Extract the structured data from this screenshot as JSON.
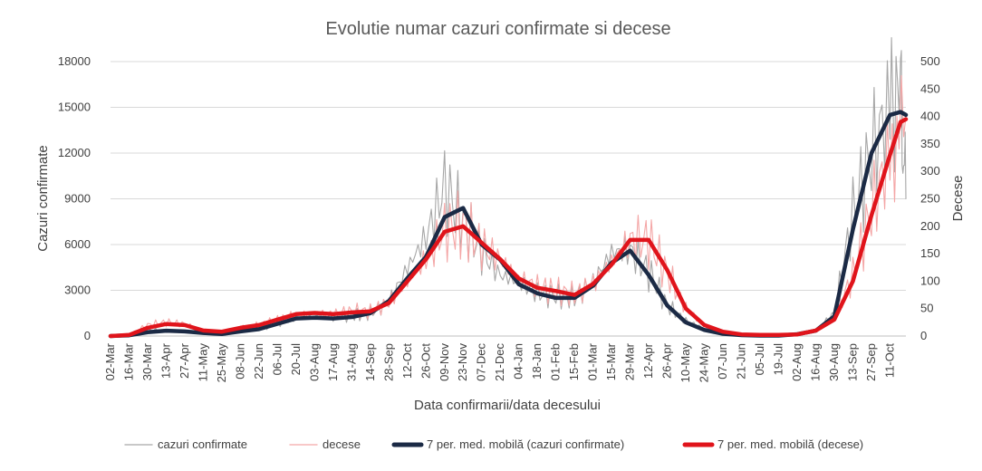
{
  "chart_data": {
    "type": "line",
    "title": "Evolutie numar cazuri confirmate si decese",
    "xlabel": "Data confirmarii/data decesului",
    "ylabel_left": "Cazuri confirmate",
    "ylabel_right": "Decese",
    "ylim_left": [
      0,
      18000
    ],
    "ylim_right": [
      0,
      500
    ],
    "yticks_left": [
      "0",
      "3000",
      "6000",
      "9000",
      "12000",
      "15000",
      "18000"
    ],
    "yticks_right": [
      "0",
      "50",
      "100",
      "150",
      "200",
      "250",
      "300",
      "350",
      "400",
      "450",
      "500"
    ],
    "x_tick_labels": [
      "02-Mar",
      "16-Mar",
      "30-Mar",
      "13-Apr",
      "27-Apr",
      "11-May",
      "25-May",
      "08-Jun",
      "22-Jun",
      "06-Jul",
      "20-Jul",
      "03-Aug",
      "17-Aug",
      "31-Aug",
      "14-Sep",
      "28-Sep",
      "12-Oct",
      "26-Oct",
      "09-Nov",
      "23-Nov",
      "07-Dec",
      "21-Dec",
      "04-Jan",
      "18-Jan",
      "01-Feb",
      "15-Feb",
      "01-Mar",
      "15-Mar",
      "29-Mar",
      "12-Apr",
      "26-Apr",
      "10-May",
      "24-May",
      "07-Jun",
      "21-Jun",
      "05-Jul",
      "19-Jul",
      "02-Aug",
      "16-Aug",
      "30-Aug",
      "13-Sep",
      "27-Sep",
      "11-Oct"
    ],
    "grid": true,
    "legend_position": "bottom",
    "series": [
      {
        "name": "cazuri confirmate",
        "axis": "left",
        "color": "#a6a6a6",
        "style": "thin-noisy",
        "x": [
          0,
          14,
          28,
          42,
          56,
          70,
          84,
          98,
          112,
          126,
          140,
          154,
          168,
          182,
          196,
          210,
          224,
          238,
          252,
          266,
          280,
          294,
          308,
          322,
          336,
          350,
          364,
          378,
          392,
          406,
          420,
          434,
          448,
          462,
          476,
          490,
          504,
          518,
          532,
          546,
          560,
          574,
          588,
          596,
          600
        ],
        "y": [
          0,
          100,
          400,
          350,
          300,
          250,
          150,
          300,
          500,
          800,
          1200,
          1300,
          1250,
          1300,
          1500,
          2200,
          4500,
          6500,
          9800,
          7500,
          5500,
          4000,
          3500,
          2800,
          2600,
          2500,
          3500,
          5500,
          5600,
          4200,
          2000,
          1000,
          500,
          200,
          80,
          50,
          50,
          150,
          400,
          1500,
          8000,
          12000,
          15000,
          16000,
          9000
        ]
      },
      {
        "name": "decese",
        "axis": "right",
        "color": "#f4a6a6",
        "style": "thin-noisy",
        "x": [
          0,
          14,
          28,
          42,
          56,
          70,
          84,
          98,
          112,
          126,
          140,
          154,
          168,
          182,
          196,
          210,
          224,
          238,
          252,
          266,
          280,
          294,
          308,
          322,
          336,
          350,
          364,
          378,
          392,
          406,
          420,
          434,
          448,
          462,
          476,
          490,
          504,
          518,
          532,
          546,
          560,
          574,
          588,
          600
        ],
        "y": [
          0,
          3,
          20,
          25,
          22,
          10,
          8,
          15,
          20,
          30,
          40,
          42,
          40,
          45,
          45,
          60,
          100,
          140,
          195,
          200,
          165,
          140,
          105,
          90,
          82,
          75,
          95,
          135,
          175,
          175,
          115,
          50,
          20,
          8,
          3,
          2,
          2,
          3,
          10,
          35,
          110,
          230,
          330,
          400
        ]
      },
      {
        "name": "7 per. med. mobilă (cazuri confirmate)",
        "axis": "left",
        "color": "#1b2a45",
        "style": "thick",
        "x": [
          0,
          14,
          28,
          42,
          56,
          70,
          84,
          98,
          112,
          126,
          140,
          154,
          168,
          182,
          196,
          210,
          224,
          238,
          252,
          266,
          280,
          294,
          308,
          322,
          336,
          350,
          364,
          378,
          392,
          406,
          420,
          434,
          448,
          462,
          476,
          490,
          504,
          518,
          532,
          546,
          560,
          574,
          588,
          596,
          600
        ],
        "y": [
          0,
          50,
          250,
          350,
          300,
          200,
          130,
          300,
          450,
          800,
          1150,
          1200,
          1150,
          1250,
          1500,
          2300,
          3800,
          5200,
          7800,
          8400,
          6000,
          5000,
          3400,
          2800,
          2500,
          2500,
          3300,
          4800,
          5600,
          4000,
          2000,
          900,
          400,
          150,
          60,
          30,
          30,
          120,
          350,
          1300,
          7000,
          12000,
          14500,
          14700,
          14500
        ]
      },
      {
        "name": "7 per. med. mobilă (decese)",
        "axis": "right",
        "color": "#e0141b",
        "style": "thick",
        "x": [
          0,
          14,
          28,
          42,
          56,
          70,
          84,
          98,
          112,
          126,
          140,
          154,
          168,
          182,
          196,
          210,
          224,
          238,
          252,
          266,
          280,
          294,
          308,
          322,
          336,
          350,
          364,
          378,
          392,
          406,
          420,
          434,
          448,
          462,
          476,
          490,
          504,
          518,
          532,
          546,
          560,
          574,
          588,
          596,
          600
        ],
        "y": [
          0,
          2,
          15,
          22,
          20,
          10,
          8,
          15,
          20,
          30,
          40,
          42,
          40,
          43,
          45,
          60,
          100,
          140,
          190,
          200,
          170,
          140,
          105,
          88,
          82,
          75,
          95,
          130,
          175,
          175,
          120,
          50,
          20,
          8,
          3,
          2,
          2,
          3,
          10,
          30,
          100,
          220,
          330,
          390,
          395
        ]
      }
    ]
  }
}
